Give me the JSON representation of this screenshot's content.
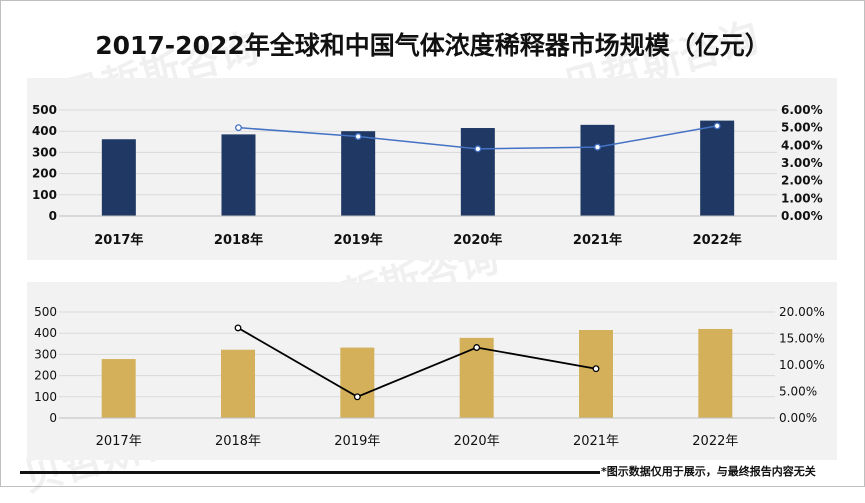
{
  "title": "2017-2022年全球和中国气体浓度稀释器市场规模（亿元）",
  "watermark": "贝哲斯咨询",
  "footnote": "*图示数据仅用于展示，与最终报告内容无关",
  "colors": {
    "top_bar": "#1f3864",
    "top_line": "#4472c4",
    "bottom_bar": "#d4b05a",
    "bottom_line": "#000000",
    "panel_bg": "#f2f2f2",
    "grid": "#d9d9d9"
  },
  "chart_data": [
    {
      "type": "bar",
      "categories": [
        "2017年",
        "2018年",
        "2019年",
        "2020年",
        "2021年",
        "2022年"
      ],
      "series": [
        {
          "values": [
            362,
            385,
            400,
            415,
            430,
            450
          ],
          "axis": "left",
          "kind": "bar"
        },
        {
          "values": [
            null,
            0.05,
            0.045,
            0.038,
            0.039,
            0.051
          ],
          "axis": "right",
          "kind": "line"
        }
      ],
      "ylim": [
        0,
        500
      ],
      "yticks": [
        "0",
        "100",
        "200",
        "300",
        "400",
        "500"
      ],
      "y2lim": [
        0,
        0.06
      ],
      "y2ticks": [
        "0.00%",
        "1.00%",
        "2.00%",
        "3.00%",
        "4.00%",
        "5.00%",
        "6.00%"
      ],
      "grid": true,
      "bold_ticks": true
    },
    {
      "type": "bar",
      "categories": [
        "2017年",
        "2018年",
        "2019年",
        "2020年",
        "2021年",
        "2022年"
      ],
      "series": [
        {
          "values": [
            278,
            322,
            332,
            378,
            415,
            420
          ],
          "axis": "left",
          "kind": "bar"
        },
        {
          "values": [
            null,
            0.17,
            0.04,
            0.133,
            0.093,
            null
          ],
          "axis": "right",
          "kind": "line"
        }
      ],
      "ylim": [
        0,
        500
      ],
      "yticks": [
        "0",
        "100",
        "200",
        "300",
        "400",
        "500"
      ],
      "y2lim": [
        0,
        0.2
      ],
      "y2ticks": [
        "0.00%",
        "5.00%",
        "10.00%",
        "15.00%",
        "20.00%"
      ],
      "grid": true,
      "bold_ticks": false
    }
  ]
}
